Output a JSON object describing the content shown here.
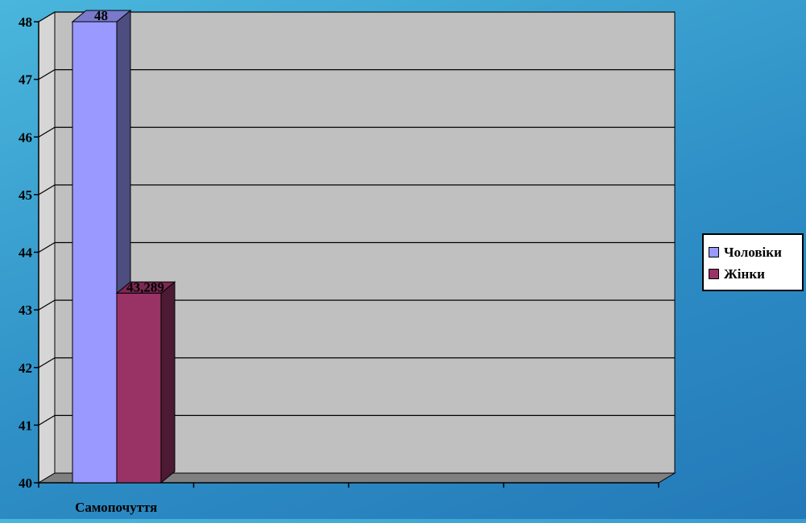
{
  "chart_data": {
    "type": "bar",
    "title": "",
    "xlabel": "",
    "ylabel": "",
    "categories": [
      "Самопочуття",
      "",
      "",
      ""
    ],
    "series": [
      {
        "name": "Чоловіки",
        "values": [
          48,
          null,
          null,
          null
        ],
        "labels": [
          "48",
          "",
          "",
          ""
        ]
      },
      {
        "name": "Жінки",
        "values": [
          43.289,
          null,
          null,
          null
        ],
        "labels": [
          "43,289",
          "",
          "",
          ""
        ]
      }
    ],
    "ylim": [
      40,
      48
    ],
    "yticks": [
      "40",
      "41",
      "42",
      "43",
      "44",
      "45",
      "46",
      "47",
      "48"
    ],
    "grid": true,
    "legend_position": "right",
    "three_d": true
  },
  "colors": {
    "series_front": [
      "#9999ff",
      "#993366"
    ],
    "series_side": [
      "#4d4d80",
      "#4d1a33"
    ],
    "series_top": [
      "#7a7acc",
      "#7a2952"
    ],
    "wall": "#c0c0c0",
    "floor": "#808080"
  }
}
